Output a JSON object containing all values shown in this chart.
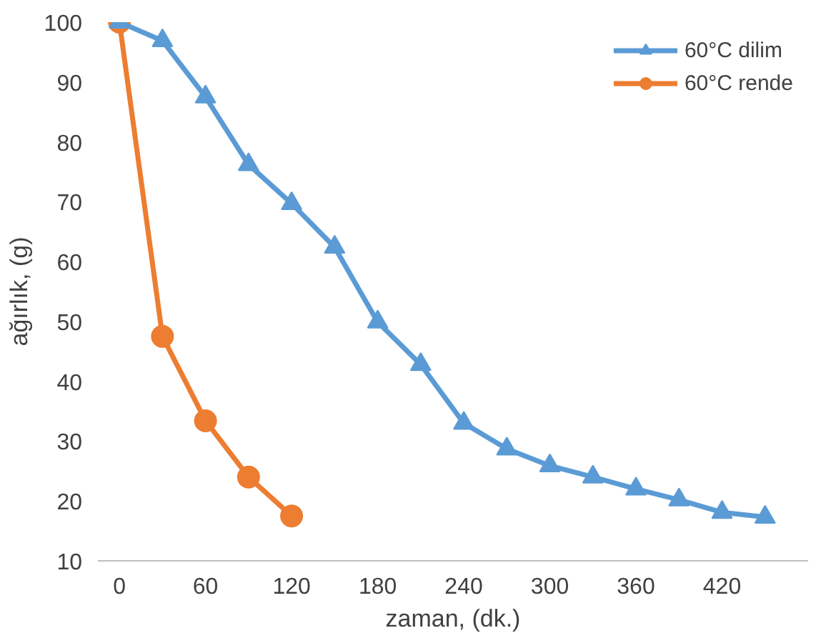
{
  "chart_data": {
    "type": "line",
    "xlabel": "zaman, (dk.)",
    "ylabel": "ağırlık, (g)",
    "xlim": [
      -15,
      480
    ],
    "xticks": [
      0,
      60,
      120,
      180,
      240,
      300,
      360,
      420
    ],
    "ylim": [
      10,
      100
    ],
    "yticks": [
      10,
      20,
      30,
      40,
      50,
      60,
      70,
      80,
      90,
      100
    ],
    "grid": false,
    "legend": "top right",
    "series": [
      {
        "name": "60°C dilim",
        "color": "#5b9bd5",
        "marker": "triangle",
        "x": [
          0,
          30,
          60,
          90,
          120,
          150,
          180,
          210,
          240,
          270,
          300,
          330,
          360,
          390,
          420,
          450
        ],
        "values": [
          100,
          96.9,
          87.5,
          76.2,
          69.7,
          62.4,
          49.9,
          42.8,
          33,
          28.7,
          25.9,
          24,
          22,
          20.2,
          18.1,
          17.3
        ]
      },
      {
        "name": "60°C rende",
        "color": "#ed7d31",
        "marker": "circle",
        "x": [
          0,
          30,
          60,
          90,
          120
        ],
        "values": [
          100,
          47.5,
          33.4,
          24,
          17.5
        ]
      }
    ]
  }
}
